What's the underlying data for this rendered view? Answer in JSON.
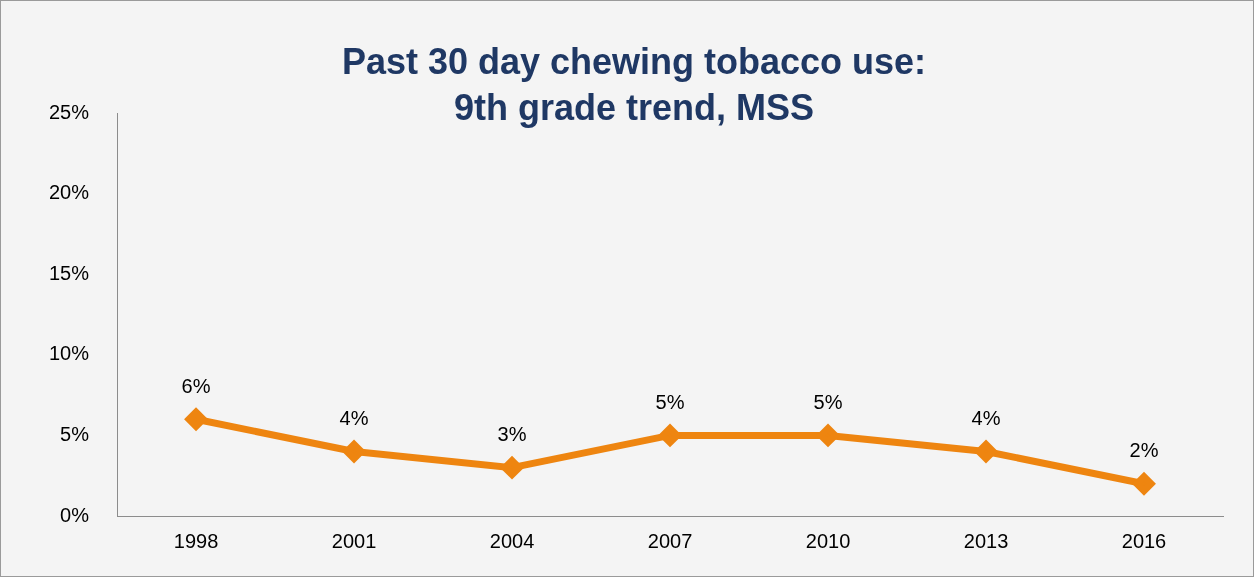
{
  "chart_data": {
    "type": "line",
    "title": "Past 30 day chewing tobacco use: 9th grade trend, MSS",
    "categories": [
      "1998",
      "2001",
      "2004",
      "2007",
      "2010",
      "2013",
      "2016"
    ],
    "series": [
      {
        "color": "#ee8510",
        "values": [
          6,
          4,
          3,
          5,
          5,
          4,
          2
        ],
        "value_labels": [
          "6%",
          "4%",
          "3%",
          "5%",
          "5%",
          "4%",
          "2%"
        ]
      }
    ],
    "ylim": [
      0,
      25
    ],
    "yticks": [
      {
        "value": 0,
        "label": "0%"
      },
      {
        "value": 5,
        "label": "5%"
      },
      {
        "value": 10,
        "label": "10%"
      },
      {
        "value": 15,
        "label": "15%"
      },
      {
        "value": 20,
        "label": "20%"
      },
      {
        "value": 25,
        "label": "25%"
      }
    ],
    "grid": false,
    "legend": false,
    "marker": "diamond",
    "line_style": "solid"
  }
}
